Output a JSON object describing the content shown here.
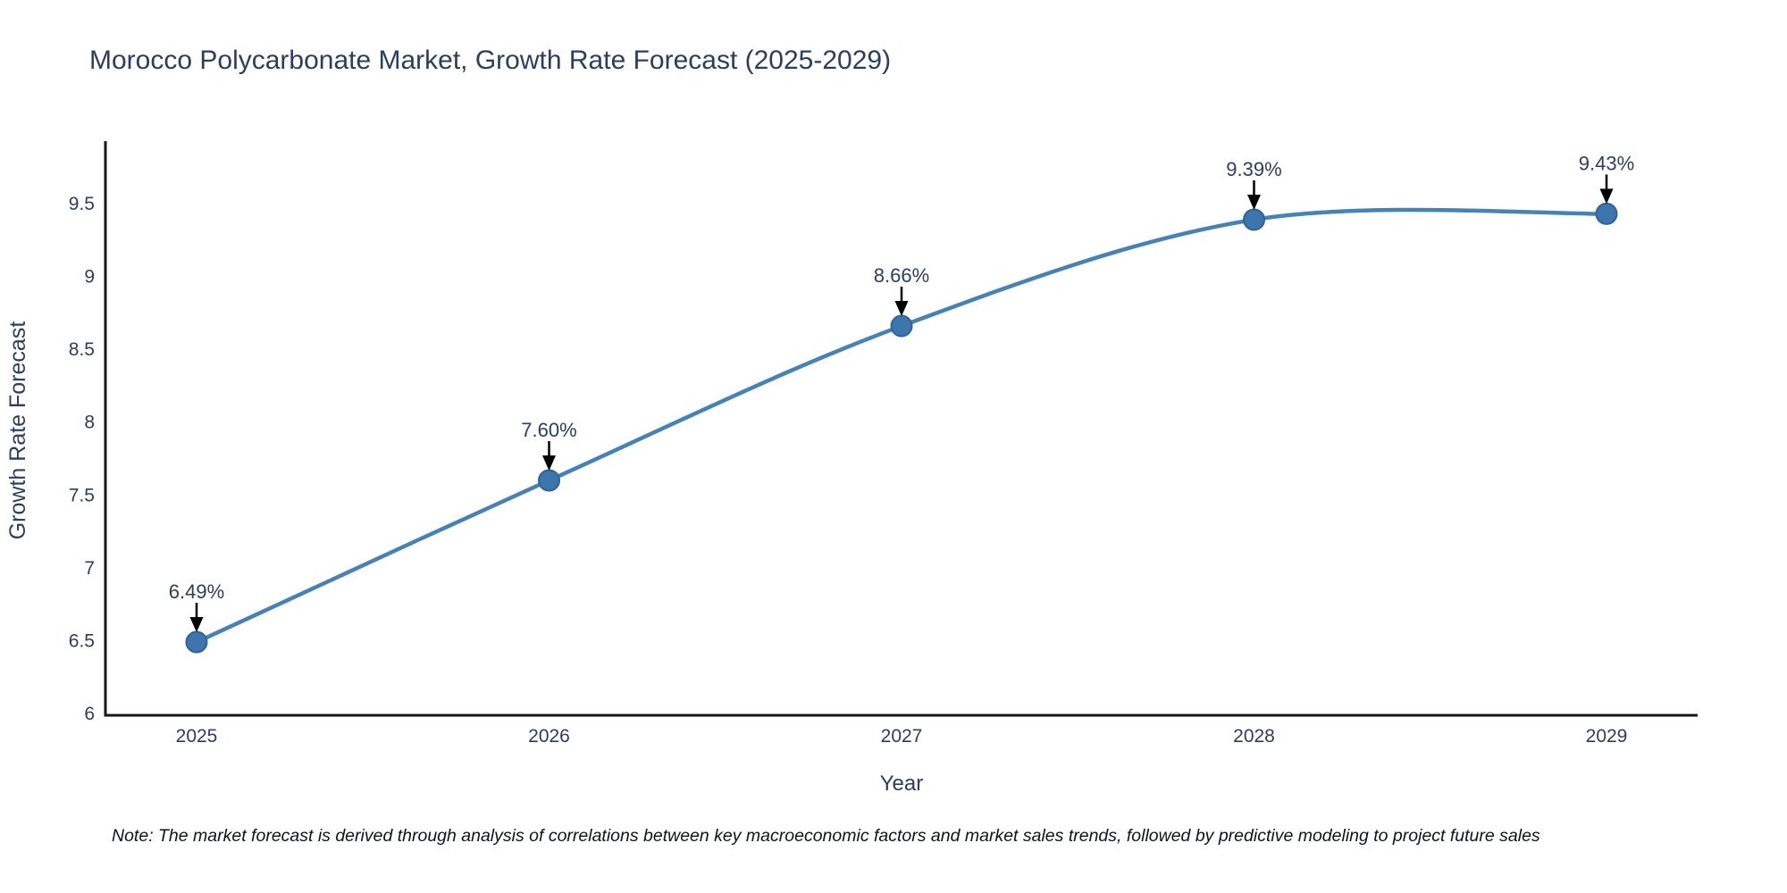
{
  "chart_data": {
    "type": "line",
    "title": "Morocco Polycarbonate Market, Growth Rate Forecast (2025-2029)",
    "xlabel": "Year",
    "ylabel": "Growth Rate Forecast",
    "categories": [
      "2025",
      "2026",
      "2027",
      "2028",
      "2029"
    ],
    "series": [
      {
        "name": "Growth Rate Forecast",
        "values": [
          6.49,
          7.6,
          8.66,
          9.39,
          9.43
        ]
      }
    ],
    "point_labels": [
      "6.49%",
      "7.60%",
      "8.66%",
      "9.39%",
      "9.43%"
    ],
    "ylim": [
      6,
      9.9
    ],
    "yticks": [
      6,
      6.5,
      7,
      7.5,
      8,
      8.5,
      9,
      9.5
    ],
    "line_shape": "spline",
    "grid": false,
    "legend": false,
    "colors": {
      "line": "#4682b4",
      "marker_fill": "#3d76ad",
      "marker_edge": "#2f6394",
      "text": "#2a3f5f",
      "axis": "#161616",
      "arrow": "#000000"
    },
    "note": "Note: The market forecast is derived through analysis of correlations between key macroeconomic factors and market sales trends, followed by predictive modeling to project future sales"
  }
}
